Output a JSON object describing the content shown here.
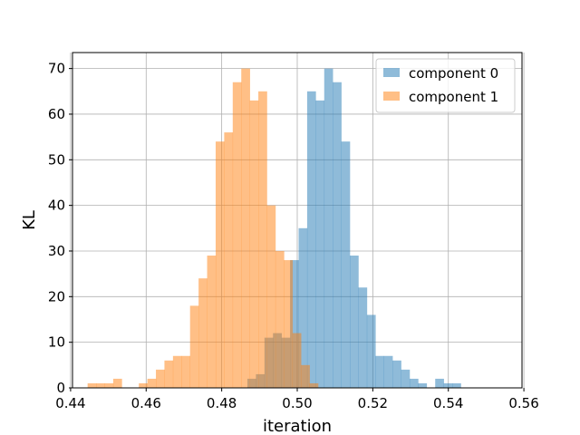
{
  "chart_data": {
    "type": "histogram",
    "title": "",
    "xlabel": "iteration",
    "ylabel": "KL",
    "xlim": [
      0.4405,
      0.5595
    ],
    "ylim": [
      0,
      73.5
    ],
    "xticks": [
      0.44,
      0.46,
      0.48,
      0.5,
      0.52,
      0.54,
      0.56
    ],
    "xtick_labels": [
      "0.44",
      "0.46",
      "0.48",
      "0.50",
      "0.52",
      "0.54",
      "0.56"
    ],
    "yticks": [
      0,
      10,
      20,
      30,
      40,
      50,
      60,
      70
    ],
    "ytick_labels": [
      "0",
      "10",
      "20",
      "30",
      "40",
      "50",
      "60",
      "70"
    ],
    "grid": true,
    "legend_position": "top-right",
    "series": [
      {
        "name": "component 0",
        "color": "#1f77b4",
        "alpha": 0.5,
        "bin_start": 0.4868,
        "bin_width": 0.00226,
        "counts": [
          2,
          3,
          11,
          12,
          11,
          28,
          35,
          65,
          63,
          70,
          67,
          54,
          29,
          22,
          16,
          7,
          7,
          6,
          4,
          2,
          1,
          0,
          2,
          1,
          1
        ]
      },
      {
        "name": "component 1",
        "color": "#ff7f0e",
        "alpha": 0.5,
        "bin_start": 0.4445,
        "bin_width": 0.00226,
        "counts": [
          1,
          1,
          1,
          2,
          0,
          0,
          1,
          2,
          4,
          6,
          7,
          7,
          18,
          24,
          29,
          54,
          56,
          67,
          70,
          63,
          65,
          40,
          30,
          28,
          12,
          5,
          1
        ]
      }
    ]
  }
}
